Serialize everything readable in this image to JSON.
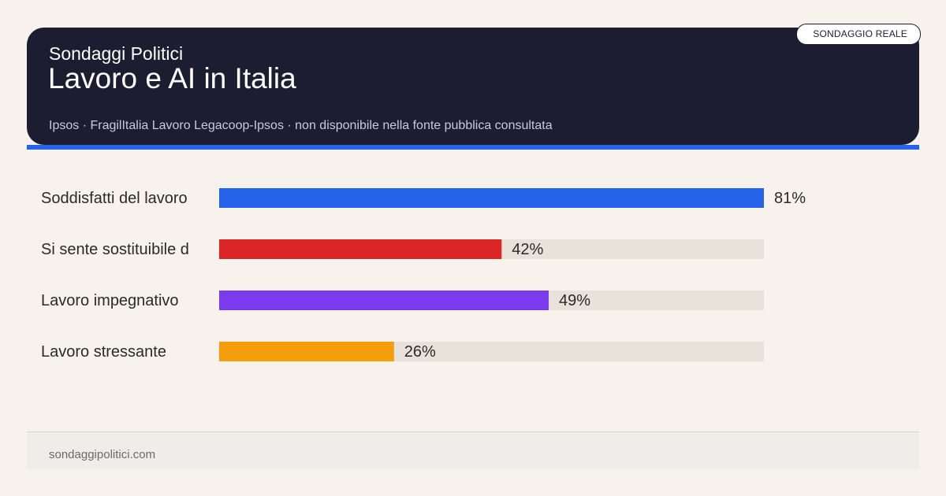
{
  "header": {
    "brand": "Sondaggi Politici",
    "title": "Lavoro e AI in Italia",
    "source": "Ipsos · FragilItalia Lavoro Legacoop-Ipsos · non disponibile nella fonte pubblica consultata",
    "badge": "SONDAGGIO REALE"
  },
  "footer": {
    "site": "sondaggipolitici.com"
  },
  "colors": {
    "header_bg": "#1c1d31",
    "accent": "#2563eb",
    "track": "#e8e2da",
    "page_bg": "#f7f3ec"
  },
  "chart_data": {
    "type": "bar",
    "orientation": "horizontal",
    "categories": [
      "Soddisfatti del lavoro",
      "Si sente sostituibile d",
      "Lavoro impegnativo",
      "Lavoro stressante"
    ],
    "values": [
      81,
      42,
      49,
      26
    ],
    "value_labels": [
      "81%",
      "42%",
      "49%",
      "26%"
    ],
    "colors": [
      "#2563eb",
      "#dc2626",
      "#7c3aed",
      "#f59e0b"
    ],
    "xlim": [
      0,
      81
    ],
    "unit": "%",
    "grid": false,
    "legend": "none"
  }
}
